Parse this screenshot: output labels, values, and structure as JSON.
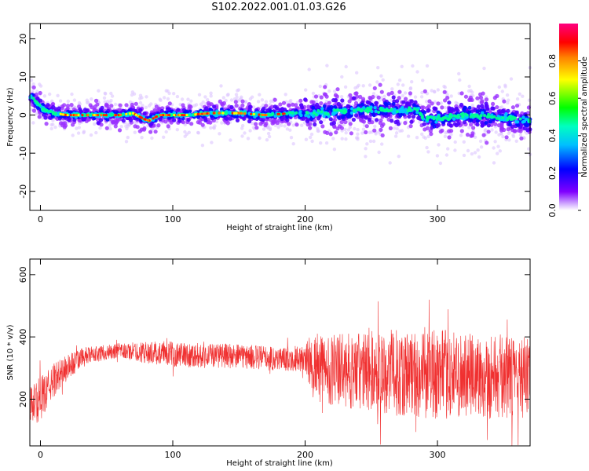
{
  "figure": {
    "title": "S102.2022.001.01.03.G26"
  },
  "chart_data": [
    {
      "type": "heatmap",
      "xlabel": "Height of straight line (km)",
      "ylabel": "Frequency (Hz)",
      "xlim": [
        -8,
        370
      ],
      "ylim": [
        -25,
        24
      ],
      "xticks": [
        0,
        100,
        200,
        300
      ],
      "yticks": [
        20,
        10,
        0,
        -10,
        -20
      ],
      "ridge_frequency": {
        "x": [
          -8,
          -2,
          2,
          6,
          10,
          20,
          40,
          60,
          70,
          78,
          82,
          90,
          110,
          130,
          150,
          170,
          190,
          210,
          230,
          250,
          270,
          285,
          290,
          300,
          320,
          340,
          360,
          370
        ],
        "y": [
          5,
          3,
          1.5,
          1,
          0.5,
          0,
          0,
          0,
          0.5,
          -1,
          -1.5,
          0,
          0,
          0.5,
          0.5,
          0,
          0.5,
          0.5,
          1,
          1.5,
          1,
          1.5,
          -1,
          -1,
          0,
          -0.5,
          -1,
          -1.5
        ]
      },
      "colorbar": {
        "label": "Normalized spectral amplitude",
        "range": [
          0,
          1
        ],
        "ticks": [
          0.0,
          0.2,
          0.4,
          0.6,
          0.8
        ],
        "tick_labels": [
          "0.0",
          "0.2",
          "0.4",
          "0.6",
          "0.8"
        ],
        "colormap": "gist_rainbow_r"
      }
    },
    {
      "type": "line",
      "xlabel": "Height of straight line (km)",
      "ylabel": "SNR (10 * v/v)",
      "xlim": [
        -8,
        370
      ],
      "ylim": [
        50,
        650
      ],
      "xticks": [
        0,
        100,
        200,
        300
      ],
      "yticks": [
        200,
        400,
        600
      ],
      "color": "#f03030",
      "series": [
        {
          "envelope_x": [
            -8,
            -4,
            0,
            5,
            10,
            20,
            30,
            40,
            60,
            80,
            100,
            120,
            140,
            160,
            180,
            200,
            205,
            210,
            230,
            250,
            270,
            290,
            300,
            320,
            340,
            360,
            370
          ],
          "mean": [
            180,
            190,
            200,
            230,
            260,
            300,
            330,
            345,
            355,
            350,
            345,
            340,
            340,
            335,
            330,
            330,
            310,
            300,
            290,
            290,
            285,
            280,
            280,
            275,
            275,
            270,
            270
          ],
          "spread": [
            60,
            70,
            70,
            60,
            55,
            45,
            35,
            25,
            25,
            35,
            40,
            40,
            40,
            40,
            40,
            40,
            110,
            110,
            120,
            130,
            140,
            145,
            145,
            140,
            140,
            130,
            130
          ]
        }
      ]
    }
  ]
}
